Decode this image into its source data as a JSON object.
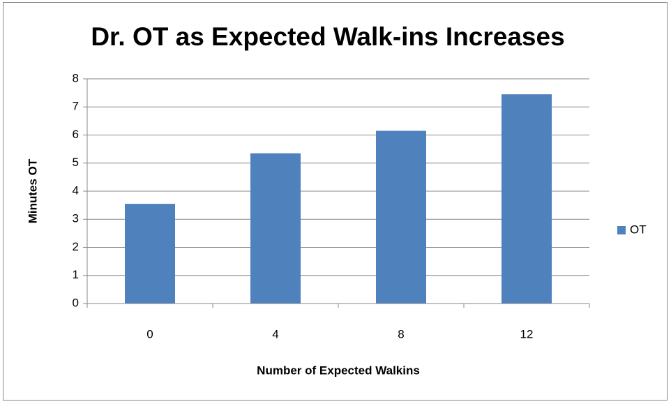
{
  "chart_data": {
    "type": "bar",
    "title": "Dr. OT as Expected Walk-ins Increases",
    "x_label": "Number of Expected Walkins",
    "y_label": "Minutes OT",
    "categories": [
      "0",
      "4",
      "8",
      "12"
    ],
    "series": [
      {
        "name": "OT",
        "color": "#4f81bd",
        "values": [
          3.55,
          5.35,
          6.15,
          7.45
        ]
      }
    ],
    "ylim": [
      0,
      8
    ],
    "yticks": [
      0,
      1,
      2,
      3,
      4,
      5,
      6,
      7,
      8
    ],
    "grid": true,
    "legend": "right"
  }
}
